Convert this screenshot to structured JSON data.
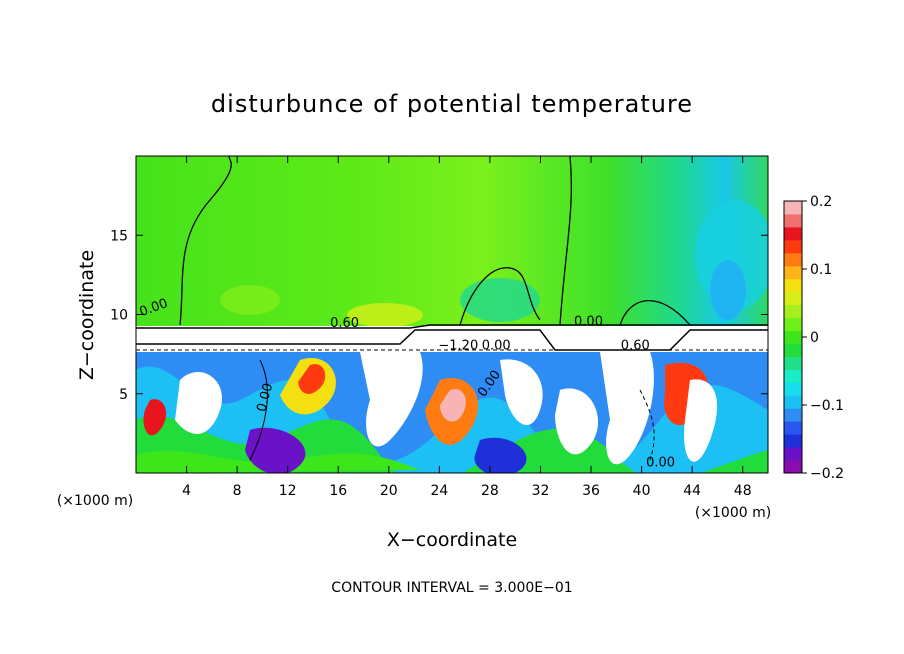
{
  "chart_data": {
    "type": "heatmap",
    "title": "disturbunce of potential temperature",
    "xlabel": "X−coordinate",
    "ylabel": "Z−coordinate",
    "x_unit": "(×1000 m)",
    "y_unit": "(×1000 m)",
    "xlim": [
      0,
      50
    ],
    "ylim": [
      0,
      20
    ],
    "xticks": [
      "4",
      "8",
      "12",
      "16",
      "20",
      "24",
      "28",
      "32",
      "36",
      "40",
      "44",
      "48"
    ],
    "yticks": [
      "5",
      "10",
      "15"
    ],
    "colorbar": {
      "range": [
        -0.2,
        0.2
      ],
      "tick_labels": [
        "0.2",
        "0.1",
        "0",
        "−0.1",
        "−0.2"
      ],
      "colors": [
        "#8a0db0",
        "#6a12c8",
        "#2030d8",
        "#2a55f0",
        "#2e8cf5",
        "#1cc0f5",
        "#15dfee",
        "#18ecc8",
        "#20e08a",
        "#22dc3c",
        "#3ce61a",
        "#6ef01a",
        "#a4f01e",
        "#d8ee18",
        "#f4e010",
        "#ffb41a",
        "#ff7a10",
        "#ff3a10",
        "#e8141e",
        "#f07070",
        "#f6b4b4"
      ]
    },
    "contour_labels": [
      {
        "text": "0.00",
        "x": 1.5,
        "z": 10.2,
        "rot": -20
      },
      {
        "text": "0.60",
        "x": 16.5,
        "z": 9.2,
        "rot": 0
      },
      {
        "text": "−1.20",
        "x": 25.5,
        "z": 7.8,
        "rot": 0
      },
      {
        "text": "0.00",
        "x": 28.5,
        "z": 7.8,
        "rot": 0
      },
      {
        "text": "0.00",
        "x": 35.8,
        "z": 9.3,
        "rot": 0
      },
      {
        "text": "0.60",
        "x": 39.5,
        "z": 7.8,
        "rot": 0
      },
      {
        "text": "0.00",
        "x": 10.5,
        "z": 4.7,
        "rot": -75
      },
      {
        "text": "0.00",
        "x": 28.2,
        "z": 5.5,
        "rot": -55
      },
      {
        "text": "0.00",
        "x": 41.5,
        "z": 0.4,
        "rot": 0
      }
    ],
    "footer": "CONTOUR INTERVAL = 3.000E−01"
  }
}
